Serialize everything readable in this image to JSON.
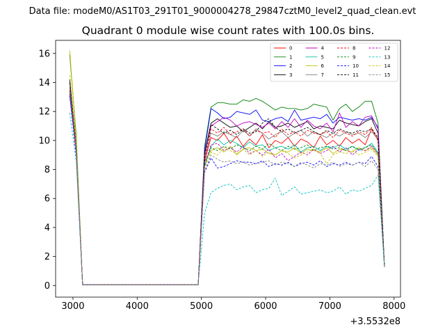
{
  "figure": {
    "suptitle": "Data file: modeM0/AS1T03_291T01_9000004278_29847cztM0_level2_quad_clean.evt",
    "title": "Quadrant 0 module wise count rates with 100.0s bins.",
    "x_offset_label": "+3.5532e8"
  },
  "chart_data": {
    "type": "line",
    "title": "Quadrant 0 module wise count rates with 100.0s bins.",
    "xlabel": "",
    "ylabel": "",
    "x_offset": 355320000,
    "xlim": [
      2730,
      8100
    ],
    "ylim": [
      -0.8,
      16.9
    ],
    "x_ticks": [
      3000,
      4000,
      5000,
      6000,
      7000,
      8000
    ],
    "y_ticks": [
      0,
      2,
      4,
      6,
      8,
      10,
      12,
      14,
      16
    ],
    "legend_position": "top-right",
    "legend_columns": 4,
    "grid": false,
    "x": [
      2950,
      3050,
      3150,
      3250,
      3350,
      3450,
      3550,
      3650,
      3750,
      3850,
      3950,
      4050,
      4150,
      4250,
      4350,
      4450,
      4550,
      4650,
      4750,
      4850,
      4950,
      5050,
      5150,
      5250,
      5350,
      5450,
      5550,
      5650,
      5750,
      5850,
      5950,
      6050,
      6150,
      6250,
      6350,
      6450,
      6550,
      6650,
      6750,
      6850,
      6950,
      7050,
      7150,
      7250,
      7350,
      7450,
      7550,
      7650,
      7750,
      7850
    ],
    "series": [
      {
        "name": "0",
        "color": "#ff0000",
        "dash": "solid",
        "values": [
          14.0,
          9.6,
          0.05,
          0.05,
          0.05,
          0.05,
          0.05,
          0.05,
          0.05,
          0.05,
          0.05,
          0.05,
          0.05,
          0.05,
          0.05,
          0.05,
          0.05,
          0.05,
          0.05,
          0.05,
          0.05,
          8.6,
          10.2,
          10.0,
          10.5,
          9.8,
          10.3,
          9.6,
          10.1,
          9.7,
          10.4,
          9.5,
          10.0,
          9.8,
          10.2,
          9.6,
          10.1,
          9.9,
          9.5,
          10.3,
          9.7,
          10.0,
          9.6,
          10.2,
          9.8,
          10.1,
          9.7,
          10.8,
          10.0,
          1.3
        ]
      },
      {
        "name": "1",
        "color": "#008000",
        "dash": "solid",
        "values": [
          15.9,
          10.4,
          0.05,
          0.05,
          0.05,
          0.05,
          0.05,
          0.05,
          0.05,
          0.05,
          0.05,
          0.05,
          0.05,
          0.05,
          0.05,
          0.05,
          0.05,
          0.05,
          0.05,
          0.05,
          0.05,
          9.6,
          12.3,
          12.6,
          12.6,
          12.5,
          12.5,
          12.8,
          12.7,
          12.9,
          12.7,
          12.4,
          12.1,
          12.3,
          12.2,
          12.2,
          12.1,
          12.2,
          12.5,
          12.4,
          12.3,
          11.4,
          12.2,
          12.5,
          12.0,
          12.3,
          12.7,
          12.7,
          11.2,
          1.3
        ]
      },
      {
        "name": "2",
        "color": "#0000ff",
        "dash": "solid",
        "values": [
          13.4,
          9.8,
          0.05,
          0.05,
          0.05,
          0.05,
          0.05,
          0.05,
          0.05,
          0.05,
          0.05,
          0.05,
          0.05,
          0.05,
          0.05,
          0.05,
          0.05,
          0.05,
          0.05,
          0.05,
          0.05,
          9.3,
          12.2,
          11.9,
          11.5,
          11.6,
          12.0,
          11.9,
          11.8,
          12.1,
          11.4,
          11.3,
          11.5,
          11.6,
          11.3,
          12.1,
          11.4,
          11.5,
          11.6,
          11.5,
          11.8,
          11.2,
          11.6,
          11.5,
          11.4,
          11.5,
          11.4,
          11.6,
          10.9,
          1.3
        ]
      },
      {
        "name": "3",
        "color": "#000000",
        "dash": "solid",
        "values": [
          14.2,
          9.7,
          0.05,
          0.05,
          0.05,
          0.05,
          0.05,
          0.05,
          0.05,
          0.05,
          0.05,
          0.05,
          0.05,
          0.05,
          0.05,
          0.05,
          0.05,
          0.05,
          0.05,
          0.05,
          0.05,
          9.1,
          11.2,
          11.5,
          11.2,
          10.9,
          11.0,
          10.6,
          10.9,
          11.2,
          10.8,
          11.3,
          10.9,
          11.0,
          11.2,
          10.9,
          11.1,
          11.3,
          10.8,
          11.0,
          10.9,
          10.8,
          11.4,
          11.2,
          11.1,
          11.0,
          11.3,
          11.5,
          10.5,
          1.3
        ]
      },
      {
        "name": "4",
        "color": "#bf00bf",
        "dash": "solid",
        "values": [
          13.7,
          9.5,
          0.05,
          0.05,
          0.05,
          0.05,
          0.05,
          0.05,
          0.05,
          0.05,
          0.05,
          0.05,
          0.05,
          0.05,
          0.05,
          0.05,
          0.05,
          0.05,
          0.05,
          0.05,
          0.05,
          9.0,
          11.0,
          11.3,
          11.6,
          11.4,
          11.0,
          11.2,
          11.3,
          11.1,
          10.9,
          11.2,
          10.8,
          11.3,
          10.9,
          11.5,
          10.9,
          11.4,
          11.0,
          10.8,
          11.2,
          10.6,
          11.9,
          10.9,
          11.3,
          11.0,
          11.6,
          11.7,
          10.8,
          1.3
        ]
      },
      {
        "name": "5",
        "color": "#00bfa0",
        "dash": "solid",
        "values": [
          13.0,
          9.3,
          0.05,
          0.05,
          0.05,
          0.05,
          0.05,
          0.05,
          0.05,
          0.05,
          0.05,
          0.05,
          0.05,
          0.05,
          0.05,
          0.05,
          0.05,
          0.05,
          0.05,
          0.05,
          0.05,
          8.2,
          9.6,
          10.1,
          9.7,
          10.0,
          9.8,
          9.5,
          9.9,
          9.6,
          9.7,
          9.3,
          9.5,
          9.6,
          9.4,
          9.7,
          9.2,
          9.5,
          9.6,
          9.3,
          9.6,
          9.5,
          9.7,
          9.4,
          9.6,
          9.3,
          9.5,
          9.8,
          9.2,
          1.3
        ]
      },
      {
        "name": "6",
        "color": "#bfbf00",
        "dash": "solid",
        "values": [
          16.2,
          10.1,
          0.05,
          0.05,
          0.05,
          0.05,
          0.05,
          0.05,
          0.05,
          0.05,
          0.05,
          0.05,
          0.05,
          0.05,
          0.05,
          0.05,
          0.05,
          0.05,
          0.05,
          0.05,
          0.05,
          8.6,
          9.3,
          9.5,
          9.2,
          9.6,
          9.0,
          9.4,
          9.5,
          9.3,
          9.4,
          9.1,
          9.0,
          9.3,
          9.2,
          9.5,
          9.1,
          9.4,
          9.3,
          9.2,
          9.5,
          9.1,
          9.4,
          9.3,
          9.2,
          9.5,
          9.3,
          9.5,
          9.0,
          1.3
        ]
      },
      {
        "name": "7",
        "color": "#808080",
        "dash": "solid",
        "values": [
          13.6,
          9.4,
          0.05,
          0.05,
          0.05,
          0.05,
          0.05,
          0.05,
          0.05,
          0.05,
          0.05,
          0.05,
          0.05,
          0.05,
          0.05,
          0.05,
          0.05,
          0.05,
          0.05,
          0.05,
          0.05,
          8.7,
          10.5,
          10.3,
          10.6,
          10.4,
          10.2,
          10.7,
          10.3,
          10.8,
          10.5,
          10.1,
          10.4,
          10.6,
          10.2,
          10.5,
          10.7,
          10.3,
          10.6,
          10.4,
          10.2,
          10.5,
          10.3,
          10.6,
          10.4,
          10.5,
          10.2,
          10.6,
          10.1,
          1.3
        ]
      },
      {
        "name": "8",
        "color": "#ff0000",
        "dash": "dashed",
        "values": [
          13.5,
          9.5,
          0.05,
          0.05,
          0.05,
          0.05,
          0.05,
          0.05,
          0.05,
          0.05,
          0.05,
          0.05,
          0.05,
          0.05,
          0.05,
          0.05,
          0.05,
          0.05,
          0.05,
          0.05,
          0.05,
          8.5,
          10.8,
          10.5,
          10.9,
          10.4,
          10.6,
          10.8,
          10.3,
          10.7,
          10.5,
          10.6,
          10.2,
          10.8,
          10.4,
          10.6,
          10.3,
          10.7,
          10.5,
          10.4,
          10.6,
          10.2,
          10.7,
          10.5,
          10.3,
          10.6,
          10.4,
          10.9,
          10.0,
          1.3
        ]
      },
      {
        "name": "9",
        "color": "#008000",
        "dash": "dashed",
        "values": [
          13.3,
          9.3,
          0.05,
          0.05,
          0.05,
          0.05,
          0.05,
          0.05,
          0.05,
          0.05,
          0.05,
          0.05,
          0.05,
          0.05,
          0.05,
          0.05,
          0.05,
          0.05,
          0.05,
          0.05,
          0.05,
          8.3,
          9.5,
          9.3,
          9.6,
          9.4,
          9.7,
          9.5,
          9.3,
          9.6,
          9.4,
          9.8,
          9.5,
          9.3,
          9.6,
          9.4,
          9.5,
          9.7,
          9.3,
          9.5,
          9.6,
          9.4,
          9.5,
          9.3,
          9.6,
          9.4,
          9.5,
          9.7,
          9.1,
          1.3
        ]
      },
      {
        "name": "10",
        "color": "#0000ff",
        "dash": "dashed",
        "values": [
          13.1,
          9.0,
          0.05,
          0.05,
          0.05,
          0.05,
          0.05,
          0.05,
          0.05,
          0.05,
          0.05,
          0.05,
          0.05,
          0.05,
          0.05,
          0.05,
          0.05,
          0.05,
          0.05,
          0.05,
          0.05,
          7.8,
          8.8,
          8.1,
          8.2,
          8.4,
          8.6,
          8.5,
          8.5,
          8.4,
          8.6,
          8.2,
          8.4,
          8.3,
          8.5,
          8.2,
          8.4,
          8.5,
          8.3,
          8.6,
          8.2,
          8.4,
          8.3,
          8.5,
          8.3,
          8.5,
          8.4,
          8.9,
          8.2,
          1.3
        ]
      },
      {
        "name": "11",
        "color": "#000000",
        "dash": "dashed",
        "values": [
          14.0,
          9.6,
          0.05,
          0.05,
          0.05,
          0.05,
          0.05,
          0.05,
          0.05,
          0.05,
          0.05,
          0.05,
          0.05,
          0.05,
          0.05,
          0.05,
          0.05,
          0.05,
          0.05,
          0.05,
          0.05,
          8.9,
          11.1,
          10.8,
          10.5,
          10.7,
          10.4,
          10.8,
          10.5,
          10.6,
          11.2,
          11.5,
          10.9,
          10.6,
          10.8,
          10.5,
          10.7,
          10.9,
          10.6,
          10.4,
          10.7,
          10.5,
          10.8,
          10.6,
          10.5,
          10.7,
          10.6,
          10.8,
          10.2,
          1.3
        ]
      },
      {
        "name": "12",
        "color": "#bf00bf",
        "dash": "dashed",
        "values": [
          13.2,
          9.2,
          0.05,
          0.05,
          0.05,
          0.05,
          0.05,
          0.05,
          0.05,
          0.05,
          0.05,
          0.05,
          0.05,
          0.05,
          0.05,
          0.05,
          0.05,
          0.05,
          0.05,
          0.05,
          0.05,
          8.4,
          9.7,
          9.8,
          9.3,
          9.5,
          9.2,
          9.6,
          9.1,
          9.3,
          9.0,
          9.4,
          8.8,
          9.1,
          8.6,
          8.9,
          9.2,
          9.0,
          9.4,
          9.1,
          9.3,
          9.6,
          9.2,
          9.5,
          9.0,
          9.4,
          9.3,
          9.6,
          9.1,
          1.3
        ]
      },
      {
        "name": "13",
        "color": "#00bfbf",
        "dash": "dashed",
        "values": [
          11.9,
          8.6,
          0.05,
          0.05,
          0.05,
          0.05,
          0.05,
          0.05,
          0.05,
          0.05,
          0.05,
          0.05,
          0.05,
          0.05,
          0.05,
          0.05,
          0.05,
          0.05,
          0.05,
          0.05,
          0.05,
          5.0,
          6.4,
          6.7,
          6.9,
          7.0,
          6.6,
          6.8,
          6.9,
          6.4,
          6.6,
          6.7,
          7.4,
          6.2,
          6.5,
          6.8,
          6.3,
          6.4,
          6.5,
          6.6,
          6.4,
          6.5,
          6.8,
          6.3,
          6.6,
          6.5,
          6.7,
          6.9,
          7.6,
          1.3
        ]
      },
      {
        "name": "14",
        "color": "#bfbf00",
        "dash": "dashed",
        "values": [
          14.5,
          9.8,
          0.05,
          0.05,
          0.05,
          0.05,
          0.05,
          0.05,
          0.05,
          0.05,
          0.05,
          0.05,
          0.05,
          0.05,
          0.05,
          0.05,
          0.05,
          0.05,
          0.05,
          0.05,
          0.05,
          8.1,
          9.2,
          9.0,
          9.5,
          9.3,
          9.1,
          9.4,
          9.0,
          9.3,
          8.9,
          9.2,
          9.0,
          9.3,
          9.1,
          8.8,
          9.0,
          9.2,
          9.4,
          9.1,
          8.4,
          9.0,
          9.2,
          9.1,
          9.3,
          9.0,
          9.2,
          9.4,
          8.9,
          1.3
        ]
      },
      {
        "name": "15",
        "color": "#808080",
        "dash": "dashed",
        "values": [
          13.8,
          9.4,
          0.05,
          0.05,
          0.05,
          0.05,
          0.05,
          0.05,
          0.05,
          0.05,
          0.05,
          0.05,
          0.05,
          0.05,
          0.05,
          0.05,
          0.05,
          0.05,
          0.05,
          0.05,
          0.05,
          7.9,
          9.0,
          8.7,
          8.5,
          8.6,
          8.4,
          8.5,
          8.3,
          8.4,
          8.5,
          8.6,
          8.3,
          8.5,
          8.4,
          8.2,
          8.5,
          8.3,
          8.1,
          8.4,
          8.3,
          8.5,
          8.2,
          8.4,
          8.3,
          8.5,
          8.2,
          8.6,
          8.0,
          1.3
        ]
      }
    ]
  }
}
